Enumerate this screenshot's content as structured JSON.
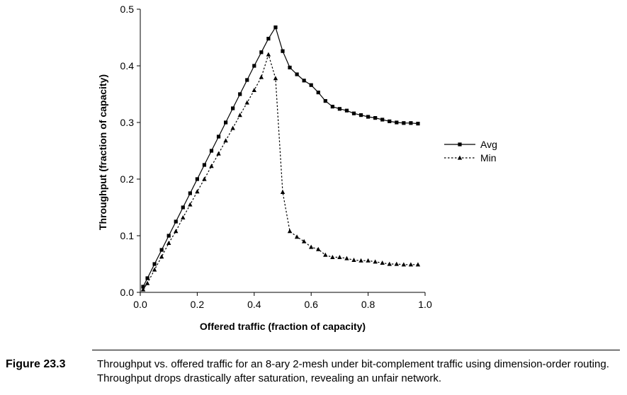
{
  "chart_data": {
    "type": "line",
    "xlabel": "Offered traffic (fraction of capacity)",
    "ylabel": "Throughput (fraction of capacity)",
    "xlim": [
      0.0,
      1.0
    ],
    "ylim": [
      0.0,
      0.5
    ],
    "x_ticks": [
      "0.0",
      "0.2",
      "0.4",
      "0.6",
      "0.8",
      "1.0"
    ],
    "y_ticks": [
      "0.0",
      "0.1",
      "0.2",
      "0.3",
      "0.4",
      "0.5"
    ],
    "x_tick_values": [
      0.0,
      0.2,
      0.4,
      0.6,
      0.8,
      1.0
    ],
    "y_tick_values": [
      0.0,
      0.1,
      0.2,
      0.3,
      0.4,
      0.5
    ],
    "legend_position": "right",
    "series": [
      {
        "name": "Avg",
        "style": "solid",
        "marker": "square",
        "x": [
          0.01,
          0.025,
          0.05,
          0.075,
          0.1,
          0.125,
          0.15,
          0.175,
          0.2,
          0.225,
          0.25,
          0.275,
          0.3,
          0.325,
          0.35,
          0.375,
          0.4,
          0.425,
          0.45,
          0.475,
          0.5,
          0.525,
          0.55,
          0.575,
          0.6,
          0.625,
          0.65,
          0.675,
          0.7,
          0.725,
          0.75,
          0.775,
          0.8,
          0.825,
          0.85,
          0.875,
          0.9,
          0.925,
          0.95,
          0.975
        ],
        "y": [
          0.01,
          0.025,
          0.05,
          0.075,
          0.1,
          0.125,
          0.15,
          0.175,
          0.2,
          0.225,
          0.25,
          0.275,
          0.3,
          0.325,
          0.35,
          0.375,
          0.4,
          0.424,
          0.448,
          0.468,
          0.426,
          0.397,
          0.385,
          0.374,
          0.366,
          0.353,
          0.338,
          0.328,
          0.324,
          0.321,
          0.316,
          0.313,
          0.31,
          0.308,
          0.305,
          0.302,
          0.3,
          0.299,
          0.299,
          0.298
        ]
      },
      {
        "name": "Min",
        "style": "dotted",
        "marker": "triangle",
        "x": [
          0.01,
          0.025,
          0.05,
          0.075,
          0.1,
          0.125,
          0.15,
          0.175,
          0.2,
          0.225,
          0.25,
          0.275,
          0.3,
          0.325,
          0.35,
          0.375,
          0.4,
          0.425,
          0.45,
          0.475,
          0.5,
          0.525,
          0.55,
          0.575,
          0.6,
          0.625,
          0.65,
          0.675,
          0.7,
          0.725,
          0.75,
          0.775,
          0.8,
          0.825,
          0.85,
          0.875,
          0.9,
          0.925,
          0.95,
          0.975
        ],
        "y": [
          0.005,
          0.016,
          0.04,
          0.063,
          0.087,
          0.108,
          0.132,
          0.155,
          0.178,
          0.2,
          0.223,
          0.245,
          0.268,
          0.29,
          0.313,
          0.335,
          0.357,
          0.38,
          0.42,
          0.378,
          0.177,
          0.108,
          0.098,
          0.09,
          0.08,
          0.076,
          0.066,
          0.062,
          0.062,
          0.06,
          0.057,
          0.056,
          0.056,
          0.054,
          0.052,
          0.05,
          0.05,
          0.049,
          0.049,
          0.049
        ]
      }
    ]
  },
  "caption": {
    "label": "Figure 23.3",
    "text": "Throughput vs. offered traffic for an 8-ary 2-mesh under bit-complement traffic using dimension-order routing. Throughput drops drastically after saturation, revealing an unfair network."
  }
}
